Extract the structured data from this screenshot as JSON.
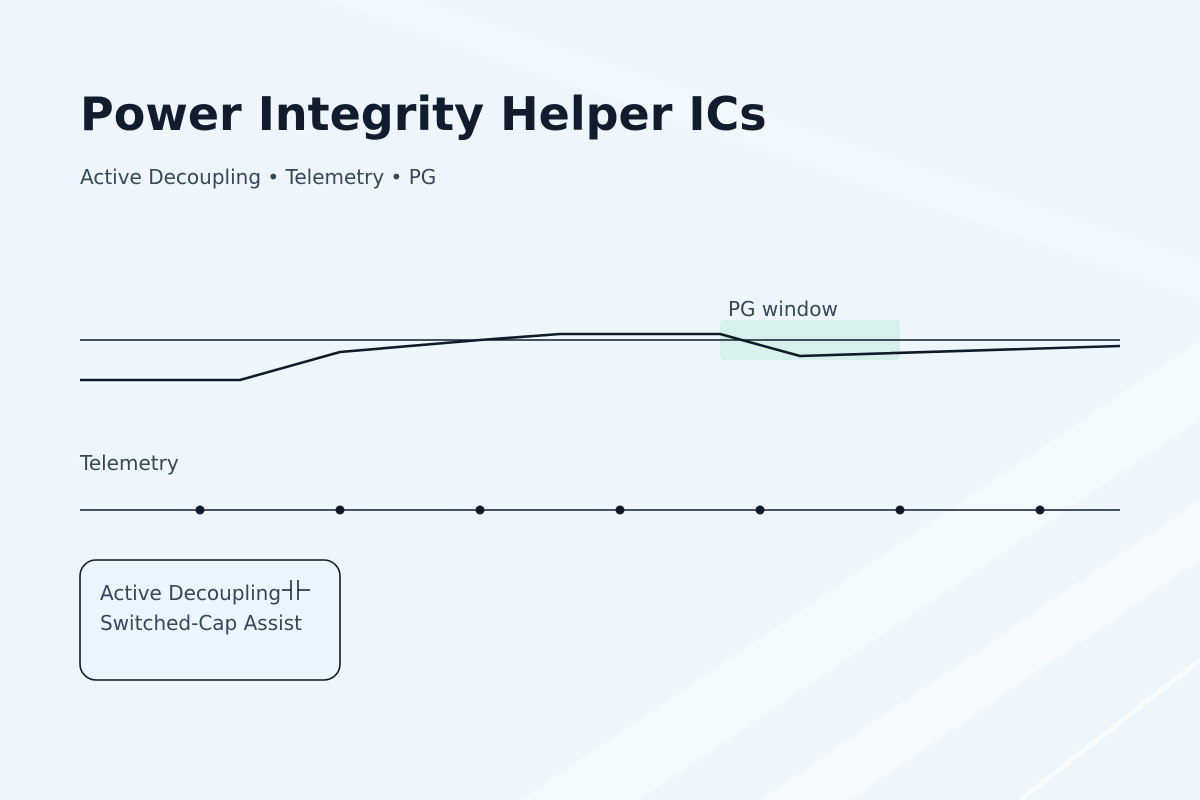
{
  "title": "Power Integrity Helper ICs",
  "subtitle": "Active Decoupling • Telemetry • PG",
  "pg_window_label": "PG window",
  "telemetry_label": "Telemetry",
  "telemetry_samples": 7,
  "block": {
    "line1": "Active Decoupling",
    "line2": "Switched-Cap Assist"
  },
  "colors": {
    "background": "#eef6fb",
    "stroke": "#0f1b2b",
    "text": "#37465a",
    "pg_window_fill": "#d3f0ea",
    "block_fill": "#ecf5fe"
  }
}
